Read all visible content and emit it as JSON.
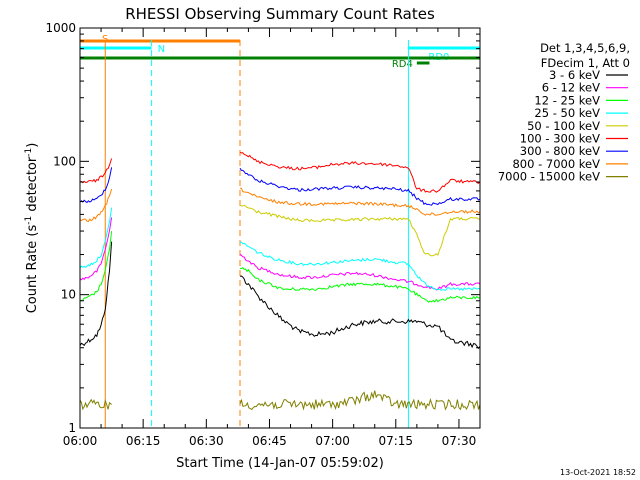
{
  "chart_data": {
    "type": "line",
    "title": "RHESSI Observing Summary Count Rates",
    "xlabel": "Start Time (14-Jan-07 05:59:02)",
    "ylabel": "Count Rate (s⁻¹ detector⁻¹)",
    "ylabel_parts": {
      "main": "Count Rate (s",
      "sup1": "-1",
      "mid": " detector",
      "sup2": "-1",
      "end": ")"
    },
    "y_scale": "log",
    "ylim": [
      1,
      1000
    ],
    "xlim": [
      "06:00",
      "07:35"
    ],
    "xticks": [
      "06:00",
      "06:15",
      "06:30",
      "06:45",
      "07:00",
      "07:15",
      "07:30"
    ],
    "yticks": [
      "1",
      "10",
      "100",
      "1000"
    ],
    "legend_header": [
      "Det 1,3,4,5,6,9,",
      "FDecim 1, Att 0"
    ],
    "legend_position": "right",
    "footer_date": "13-Oct-2021 18:52",
    "series": [
      {
        "name": "3 - 6 keV",
        "color": "#000000",
        "segments": [
          {
            "x": [
              "06:00",
              "06:02",
              "06:04",
              "06:05",
              "06:06",
              "06:07",
              "06:07:30"
            ],
            "y": [
              4.2,
              4.5,
              5,
              5.8,
              8,
              15,
              25
            ]
          },
          {
            "x": [
              "06:38",
              "06:40",
              "06:42",
              "06:45",
              "06:48",
              "06:52",
              "06:56",
              "07:00",
              "07:05",
              "07:10",
              "07:15",
              "07:18",
              "07:20",
              "07:22",
              "07:25",
              "07:28",
              "07:32",
              "07:35"
            ],
            "y": [
              14,
              12,
              10,
              8,
              6.5,
              5.3,
              5,
              5.2,
              6,
              6.3,
              6.3,
              6.3,
              6.3,
              6,
              5.8,
              4.5,
              4.3,
              4.1
            ]
          }
        ]
      },
      {
        "name": "6 - 12 keV",
        "color": "#ff00ff",
        "segments": [
          {
            "x": [
              "06:00",
              "06:02",
              "06:04",
              "06:05",
              "06:06",
              "06:07",
              "06:07:30"
            ],
            "y": [
              13,
              13.5,
              15,
              17,
              22,
              30,
              38
            ]
          },
          {
            "x": [
              "06:38",
              "06:40",
              "06:42",
              "06:45",
              "06:48",
              "06:52",
              "06:56",
              "07:00",
              "07:05",
              "07:10",
              "07:15",
              "07:18",
              "07:20",
              "07:22",
              "07:25",
              "07:28",
              "07:32",
              "07:35"
            ],
            "y": [
              20,
              18,
              16,
              15,
              14,
              13.5,
              13.5,
              14,
              14.5,
              14,
              13,
              12.5,
              12,
              11.5,
              11,
              12,
              12,
              12
            ]
          }
        ]
      },
      {
        "name": "12 - 25 keV",
        "color": "#00ff00",
        "segments": [
          {
            "x": [
              "06:00",
              "06:02",
              "06:04",
              "06:05",
              "06:06",
              "06:07",
              "06:07:30"
            ],
            "y": [
              9,
              9.5,
              10.5,
              12,
              15,
              22,
              30
            ]
          },
          {
            "x": [
              "06:38",
              "06:40",
              "06:42",
              "06:45",
              "06:48",
              "06:52",
              "06:56",
              "07:00",
              "07:05",
              "07:10",
              "07:15",
              "07:18",
              "07:20",
              "07:22",
              "07:25",
              "07:28",
              "07:32",
              "07:35"
            ],
            "y": [
              16,
              15,
              13,
              12,
              11,
              11,
              11,
              11.5,
              12,
              12,
              11.5,
              11,
              10,
              9,
              9,
              9.5,
              9.5,
              9.5
            ]
          }
        ]
      },
      {
        "name": "25 - 50 keV",
        "color": "#00ffff",
        "segments": [
          {
            "x": [
              "06:00",
              "06:02",
              "06:04",
              "06:05",
              "06:06",
              "06:07",
              "06:07:30"
            ],
            "y": [
              16,
              16.5,
              18,
              20,
              25,
              35,
              45
            ]
          },
          {
            "x": [
              "06:38",
              "06:40",
              "06:42",
              "06:45",
              "06:48",
              "06:52",
              "06:56",
              "07:00",
              "07:05",
              "07:10",
              "07:15",
              "07:18",
              "07:20",
              "07:22",
              "07:25",
              "07:28",
              "07:32",
              "07:35"
            ],
            "y": [
              25,
              23,
              21,
              19,
              18,
              17,
              17,
              17.5,
              18,
              18.5,
              17.5,
              17,
              14,
              12,
              11,
              11,
              11,
              11
            ]
          }
        ]
      },
      {
        "name": "50 - 100 keV",
        "color": "#cccc00",
        "segments": [
          {
            "x": [
              "06:38",
              "06:40",
              "06:42",
              "06:45",
              "06:48",
              "06:52",
              "06:56",
              "07:00",
              "07:05",
              "07:10",
              "07:15",
              "07:18",
              "07:20",
              "07:22",
              "07:25",
              "07:28",
              "07:32",
              "07:35"
            ],
            "y": [
              47,
              45,
              42,
              40,
              38,
              36,
              36,
              36,
              36.5,
              37,
              37,
              37,
              28,
              20,
              20,
              37,
              37,
              37
            ]
          }
        ]
      },
      {
        "name": "100 - 300 keV",
        "color": "#ff0000",
        "segments": [
          {
            "x": [
              "06:00",
              "06:02",
              "06:04",
              "06:05",
              "06:06",
              "06:07",
              "06:07:30"
            ],
            "y": [
              70,
              70,
              72,
              76,
              82,
              95,
              105
            ]
          },
          {
            "x": [
              "06:38",
              "06:40",
              "06:42",
              "06:45",
              "06:48",
              "06:52",
              "06:56",
              "07:00",
              "07:05",
              "07:10",
              "07:15",
              "07:18",
              "07:20",
              "07:22",
              "07:25",
              "07:28",
              "07:32",
              "07:35"
            ],
            "y": [
              120,
              110,
              100,
              95,
              90,
              88,
              90,
              95,
              97,
              96,
              93,
              90,
              62,
              60,
              60,
              72,
              70,
              70
            ]
          }
        ]
      },
      {
        "name": "300 - 800 keV",
        "color": "#0000ff",
        "segments": [
          {
            "x": [
              "06:00",
              "06:02",
              "06:04",
              "06:05",
              "06:06",
              "06:07",
              "06:07:30"
            ],
            "y": [
              50,
              50,
              52,
              56,
              62,
              75,
              90
            ]
          },
          {
            "x": [
              "06:38",
              "06:40",
              "06:42",
              "06:45",
              "06:48",
              "06:52",
              "06:56",
              "07:00",
              "07:05",
              "07:10",
              "07:15",
              "07:18",
              "07:20",
              "07:22",
              "07:25",
              "07:28",
              "07:32",
              "07:35"
            ],
            "y": [
              88,
              80,
              72,
              68,
              64,
              61,
              62,
              63,
              64,
              63,
              62,
              60,
              53,
              48,
              48,
              52,
              52,
              52
            ]
          }
        ]
      },
      {
        "name": "800 - 7000 keV",
        "color": "#ff8000",
        "segments": [
          {
            "x": [
              "06:00",
              "06:02",
              "06:04",
              "06:05",
              "06:06",
              "06:07",
              "06:07:30"
            ],
            "y": [
              36,
              36,
              38,
              41,
              46,
              55,
              62
            ]
          },
          {
            "x": [
              "06:38",
              "06:40",
              "06:42",
              "06:45",
              "06:48",
              "06:52",
              "06:56",
              "07:00",
              "07:05",
              "07:10",
              "07:15",
              "07:18",
              "07:20",
              "07:22",
              "07:25",
              "07:28",
              "07:32",
              "07:35"
            ],
            "y": [
              62,
              58,
              54,
              51,
              49,
              48,
              48,
              48,
              48.5,
              48,
              47,
              46,
              44,
              40,
              40,
              42,
              42,
              42
            ]
          }
        ]
      },
      {
        "name": "7000 - 15000 keV",
        "color": "#808000",
        "segments": [
          {
            "x": [
              "06:00",
              "06:02",
              "06:04",
              "06:05",
              "06:06",
              "06:07",
              "06:07:30"
            ],
            "y": [
              1.5,
              1.5,
              1.5,
              1.5,
              1.5,
              1.5,
              1.5
            ]
          },
          {
            "x": [
              "06:38",
              "06:45",
              "06:52",
              "07:00",
              "07:05",
              "07:10",
              "07:15",
              "07:20",
              "07:25",
              "07:30",
              "07:35"
            ],
            "y": [
              1.5,
              1.5,
              1.5,
              1.5,
              1.6,
              1.8,
              1.5,
              1.5,
              1.5,
              1.5,
              1.5
            ]
          }
        ]
      }
    ],
    "observing_flags": [
      {
        "label": "S",
        "color": "#ff8000",
        "start": "06:00",
        "end": "06:38"
      },
      {
        "label": "N",
        "color": "#00ffff",
        "start": "06:00",
        "end": "06:17"
      },
      {
        "label": "RD0",
        "color": "#00ffff",
        "start": "07:18",
        "end": "07:35"
      },
      {
        "label": "RD4",
        "color": "#008000",
        "start": "07:20",
        "end": "07:23"
      },
      {
        "label": "",
        "color": "#008000",
        "start": "06:00",
        "end": "07:35"
      }
    ],
    "vertical_markers": [
      {
        "x": "06:00",
        "color": "#00ffff",
        "style": "solid"
      },
      {
        "x": "06:06",
        "color": "#ff8000",
        "style": "solid"
      },
      {
        "x": "06:17",
        "color": "#00ffff",
        "style": "dashed"
      },
      {
        "x": "06:38",
        "color": "#ff8000",
        "style": "dashed"
      },
      {
        "x": "07:18",
        "color": "#00ffff",
        "style": "solid"
      },
      {
        "x": "07:35",
        "color": "#00ffff",
        "style": "dashed"
      }
    ]
  }
}
